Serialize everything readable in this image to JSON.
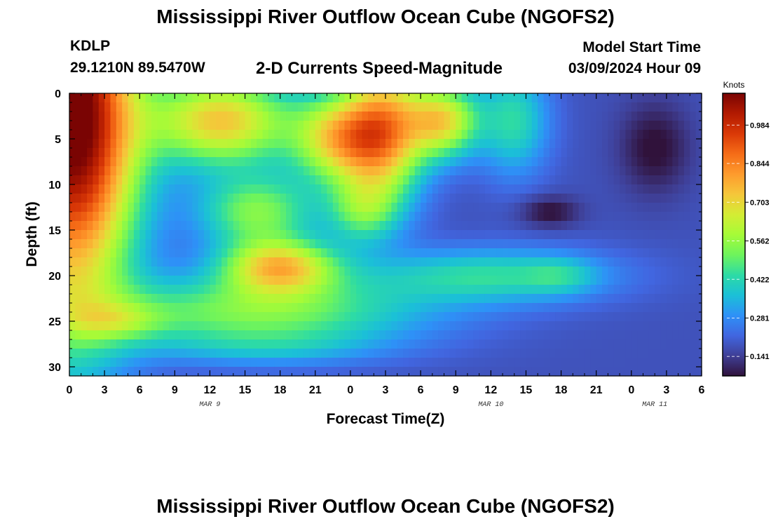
{
  "header": {
    "title": "Mississippi River Outflow Ocean Cube (NGOFS2)",
    "station_id": "KDLP",
    "station_coords": "29.1210N  89.5470W",
    "subtitle": "2-D Currents Speed-Magnitude",
    "model_start_label": "Model Start Time",
    "model_start_value": "03/09/2024 Hour 09"
  },
  "footer": {
    "title": "Mississippi River Outflow Ocean Cube (NGOFS2)"
  },
  "chart_data": {
    "type": "heatmap",
    "title": "2-D Currents Speed-Magnitude",
    "xlabel": "Forecast Time(Z)",
    "ylabel": "Depth (ft)",
    "x_range_hours": [
      0,
      54
    ],
    "y_range_ft": [
      0,
      31
    ],
    "y_inverted": true,
    "x_ticks": [
      "0",
      "3",
      "6",
      "9",
      "12",
      "15",
      "18",
      "21",
      "0",
      "3",
      "6",
      "9",
      "12",
      "15",
      "18",
      "21",
      "0",
      "3",
      "6"
    ],
    "y_ticks": [
      "0",
      "5",
      "10",
      "15",
      "20",
      "25",
      "30"
    ],
    "date_labels": [
      {
        "label": "MAR 9",
        "hour": 12
      },
      {
        "label": "MAR 10",
        "hour": 36
      },
      {
        "label": "MAR 11",
        "hour": 50
      }
    ],
    "colorbar": {
      "unit_label": "Knots",
      "min": 0.07,
      "max": 1.1,
      "ticks": [
        "0.141",
        "0.281",
        "0.422",
        "0.562",
        "0.703",
        "0.844",
        "0.984"
      ],
      "colors": [
        "#30123b",
        "#3f3f96",
        "#4166e0",
        "#2e91f7",
        "#1bc0d7",
        "#2ddba5",
        "#6ef45c",
        "#a6fb37",
        "#d4ec34",
        "#f5c63a",
        "#fe9b2d",
        "#f56c17",
        "#da3907",
        "#b21a01",
        "#7a0403"
      ]
    },
    "field": {
      "background": 0.18,
      "blobs": [
        {
          "h": 0,
          "d": 0,
          "sh": 5.5,
          "sd": 24,
          "v": 0.95
        },
        {
          "h": 3,
          "d": 8,
          "sh": 4.5,
          "sd": 10,
          "v": 0.1
        },
        {
          "h": 13,
          "d": 3,
          "sh": 6,
          "sd": 5,
          "v": 0.55
        },
        {
          "h": 23,
          "d": 5,
          "sh": 4,
          "sd": 5,
          "v": 0.48
        },
        {
          "h": 27,
          "d": 4,
          "sh": 3.5,
          "sd": 8,
          "v": 0.55
        },
        {
          "h": 32,
          "d": 3,
          "sh": 3,
          "sd": 4,
          "v": 0.48
        },
        {
          "h": 16,
          "d": 13,
          "sh": 5,
          "sd": 4,
          "v": 0.35
        },
        {
          "h": 25,
          "d": 13,
          "sh": 3,
          "sd": 3.5,
          "v": 0.25
        },
        {
          "h": 18,
          "d": 19,
          "sh": 5,
          "sd": 3,
          "v": 0.5
        },
        {
          "h": 16,
          "d": 24,
          "sh": 14,
          "sd": 4,
          "v": 0.35
        },
        {
          "h": 4,
          "d": 25,
          "sh": 4,
          "sd": 2,
          "v": 0.15
        },
        {
          "h": 17,
          "d": 28,
          "sh": 10,
          "sd": 2,
          "v": 0.1
        },
        {
          "h": 36,
          "d": 20,
          "sh": 10,
          "sd": 3,
          "v": 0.25
        },
        {
          "h": 42,
          "d": 20,
          "sh": 3,
          "sd": 2,
          "v": 0.1
        },
        {
          "h": 38,
          "d": 3,
          "sh": 3,
          "sd": 6,
          "v": 0.25
        },
        {
          "h": 41,
          "d": 13,
          "sh": 2.5,
          "sd": 1.7,
          "v": -0.12
        },
        {
          "h": 50,
          "d": 6,
          "sh": 3,
          "sd": 5,
          "v": -0.12
        }
      ]
    }
  }
}
